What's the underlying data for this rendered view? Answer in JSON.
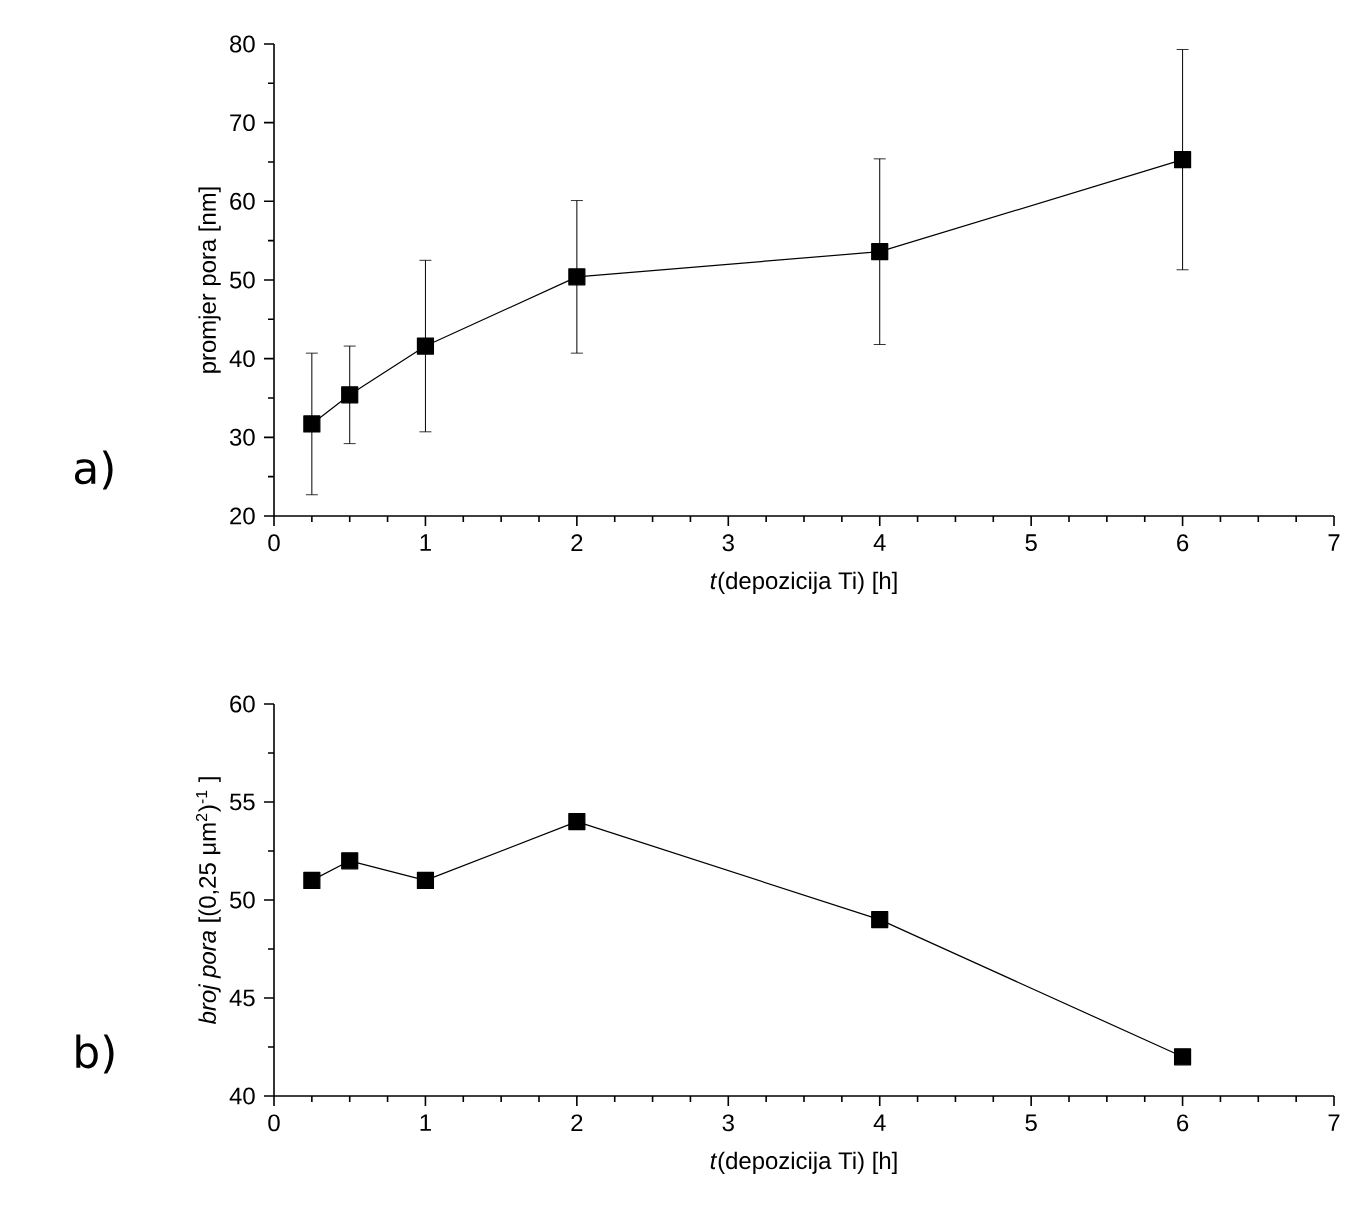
{
  "chart_data": [
    {
      "type": "line",
      "xlabel": "*t*(depozicija Ti) [h]",
      "ylabel": "promjer pora [nm]",
      "annotations": [
        "a)"
      ],
      "x": [
        0.25,
        0.5,
        1,
        2,
        4,
        6
      ],
      "series": [
        {
          "color": "#000000",
          "values": [
            31.7,
            35.4,
            41.6,
            50.4,
            53.6,
            65.3
          ],
          "errors": [
            9,
            6.2,
            10.9,
            9.7,
            11.8,
            14
          ]
        }
      ],
      "xlim": [
        0,
        7
      ],
      "xticks": [
        0,
        1,
        2,
        3,
        4,
        5,
        6,
        7
      ],
      "ylim": [
        20,
        80
      ],
      "yticks": [
        20,
        30,
        40,
        50,
        60,
        70,
        80
      ],
      "marker": "square",
      "line_style": "solid"
    },
    {
      "type": "line",
      "xlabel": "*t*(depozicija Ti) [h]",
      "ylabel": "*broj pora* [(0,25 μm$^{2}$)$^{-1}$ ]",
      "annotations": [
        "b)"
      ],
      "x": [
        0.25,
        0.5,
        1,
        2,
        4,
        6
      ],
      "series": [
        {
          "color": "#000000",
          "values": [
            51,
            52,
            51,
            54,
            49,
            42
          ]
        }
      ],
      "xlim": [
        0,
        7
      ],
      "xticks": [
        0,
        1,
        2,
        3,
        4,
        5,
        6,
        7
      ],
      "ylim": [
        40,
        60
      ],
      "yticks": [
        40,
        45,
        50,
        55,
        60
      ],
      "marker": "square",
      "line_style": "solid"
    }
  ]
}
